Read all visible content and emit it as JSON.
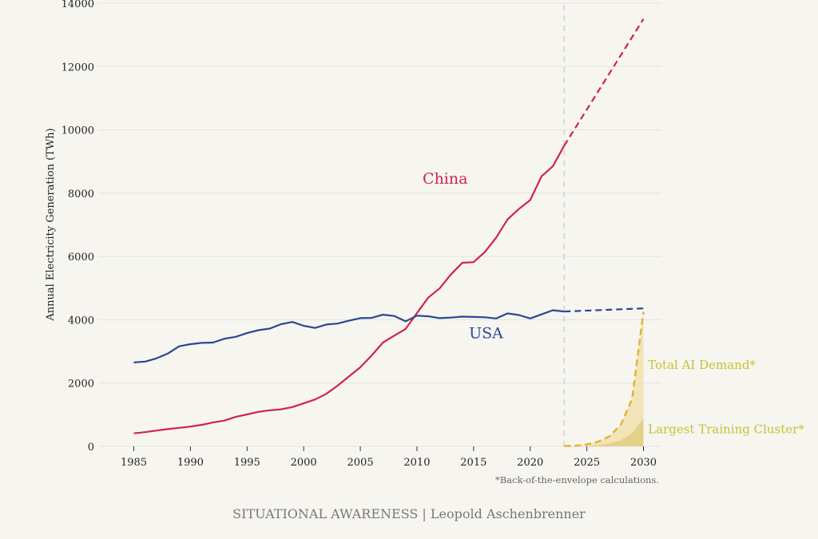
{
  "chart_data": {
    "type": "line",
    "title": "",
    "xlabel": "",
    "ylabel": "Annual Electricity Generation (TWh)",
    "xlim": [
      1985,
      2030
    ],
    "ylim": [
      0,
      14000
    ],
    "grid": "horizontal",
    "x_ticks": [
      1985,
      1990,
      1995,
      2000,
      2005,
      2010,
      2015,
      2020,
      2025,
      2030
    ],
    "y_ticks": [
      0,
      2000,
      4000,
      6000,
      8000,
      10000,
      12000,
      14000
    ],
    "colors": {
      "china": "#d3224c",
      "usa": "#2a4796",
      "ai": "#e6b12d",
      "ai_label": "#c9c232",
      "divider": "#d8d8d8",
      "grid": "#e4e4e0"
    },
    "series": [
      {
        "name": "China",
        "style": "solid",
        "x": [
          1985,
          1986,
          1987,
          1988,
          1989,
          1990,
          1991,
          1992,
          1993,
          1994,
          1995,
          1996,
          1997,
          1998,
          1999,
          2000,
          2001,
          2002,
          2003,
          2004,
          2005,
          2006,
          2007,
          2008,
          2009,
          2010,
          2011,
          2012,
          2013,
          2014,
          2015,
          2016,
          2017,
          2018,
          2019,
          2020,
          2021,
          2022,
          2023
        ],
        "y": [
          410,
          450,
          500,
          545,
          585,
          625,
          680,
          755,
          815,
          930,
          1010,
          1090,
          1140,
          1170,
          1240,
          1360,
          1480,
          1660,
          1920,
          2210,
          2500,
          2870,
          3280,
          3500,
          3710,
          4210,
          4700,
          4990,
          5430,
          5800,
          5820,
          6140,
          6600,
          7170,
          7500,
          7780,
          8530,
          8850,
          9500
        ]
      },
      {
        "name": "China",
        "style": "dashed",
        "x": [
          2023,
          2030
        ],
        "y": [
          9500,
          13500
        ]
      },
      {
        "name": "USA",
        "style": "solid",
        "x": [
          1985,
          1986,
          1987,
          1988,
          1989,
          1990,
          1991,
          1992,
          1993,
          1994,
          1995,
          1996,
          1997,
          1998,
          1999,
          2000,
          2001,
          2002,
          2003,
          2004,
          2005,
          2006,
          2007,
          2008,
          2009,
          2010,
          2011,
          2012,
          2013,
          2014,
          2015,
          2016,
          2017,
          2018,
          2019,
          2020,
          2021,
          2022,
          2023
        ],
        "y": [
          2650,
          2680,
          2780,
          2930,
          3160,
          3230,
          3270,
          3280,
          3400,
          3460,
          3580,
          3670,
          3720,
          3860,
          3930,
          3810,
          3740,
          3850,
          3880,
          3970,
          4050,
          4060,
          4160,
          4120,
          3950,
          4130,
          4110,
          4050,
          4070,
          4100,
          4090,
          4080,
          4040,
          4200,
          4150,
          4040,
          4170,
          4300,
          4260
        ]
      },
      {
        "name": "USA",
        "style": "dashed",
        "x": [
          2023,
          2030
        ],
        "y": [
          4260,
          4360
        ]
      },
      {
        "name": "Total AI Demand*",
        "style": "dashed",
        "x": [
          2023,
          2024,
          2025,
          2026,
          2027,
          2028,
          2029,
          2030
        ],
        "y": [
          10,
          20,
          60,
          150,
          320,
          680,
          1500,
          4250
        ]
      },
      {
        "name": "Largest Training Cluster*",
        "style": "area",
        "x": [
          2023,
          2024,
          2025,
          2026,
          2027,
          2028,
          2029,
          2030
        ],
        "y": [
          0,
          5,
          15,
          40,
          90,
          190,
          420,
          870
        ]
      }
    ],
    "projection_divider_x": 2023,
    "annotations": [
      {
        "text": "China",
        "x": 2010.5,
        "y": 8300,
        "series": "china"
      },
      {
        "text": "USA",
        "x": 2014.6,
        "y": 3420,
        "series": "usa"
      },
      {
        "text": "Total AI Demand*",
        "x": 2030.4,
        "y": 2450,
        "series": "ai"
      },
      {
        "text": "Largest Training Cluster*",
        "x": 2030.4,
        "y": 410,
        "series": "ai"
      }
    ],
    "footnote": "*Back-of-the-envelope calculations.",
    "credit": "SITUATIONAL AWARENESS | Leopold Aschenbrenner"
  }
}
